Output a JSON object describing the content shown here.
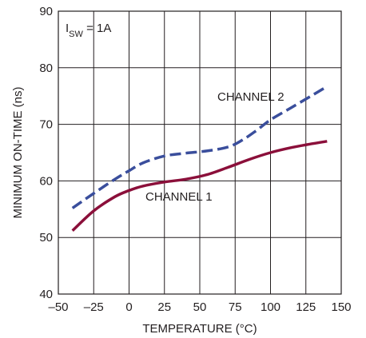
{
  "chart_data": {
    "type": "line",
    "title": "",
    "xlabel": "TEMPERATURE (°C)",
    "ylabel": "MINIMUM ON-TIME (ns)",
    "xlim": [
      -50,
      150
    ],
    "ylim": [
      40,
      90
    ],
    "x_ticks": [
      -50,
      -25,
      0,
      25,
      50,
      75,
      100,
      125,
      150
    ],
    "x_tick_labels": [
      "–50",
      "–25",
      "0",
      "25",
      "50",
      "75",
      "100",
      "125",
      "150"
    ],
    "y_ticks": [
      40,
      50,
      60,
      70,
      80,
      90
    ],
    "y_tick_labels": [
      "40",
      "50",
      "60",
      "70",
      "80",
      "90"
    ],
    "grid": true,
    "condition": {
      "main": "I",
      "sub": "SW",
      "rest": " = 1A"
    },
    "series": [
      {
        "name": "CHANNEL 1",
        "color": "#8b0f3a",
        "dash": "solid",
        "x": [
          -40,
          -25,
          -10,
          0,
          10,
          25,
          40,
          55,
          70,
          85,
          100,
          115,
          130,
          140
        ],
        "y": [
          51.2,
          54.7,
          57.2,
          58.3,
          59.1,
          59.8,
          60.3,
          61.1,
          62.4,
          63.8,
          65.0,
          65.9,
          66.6,
          67.0
        ]
      },
      {
        "name": "CHANNEL 2",
        "color": "#3a4e9c",
        "dash": "dashed",
        "x": [
          -40,
          -25,
          -10,
          0,
          10,
          25,
          40,
          55,
          70,
          80,
          90,
          100,
          115,
          130,
          140
        ],
        "y": [
          55.2,
          57.8,
          60.3,
          61.8,
          63.2,
          64.4,
          64.9,
          65.3,
          66.0,
          67.2,
          68.9,
          70.8,
          73.0,
          75.2,
          76.7
        ]
      }
    ]
  }
}
